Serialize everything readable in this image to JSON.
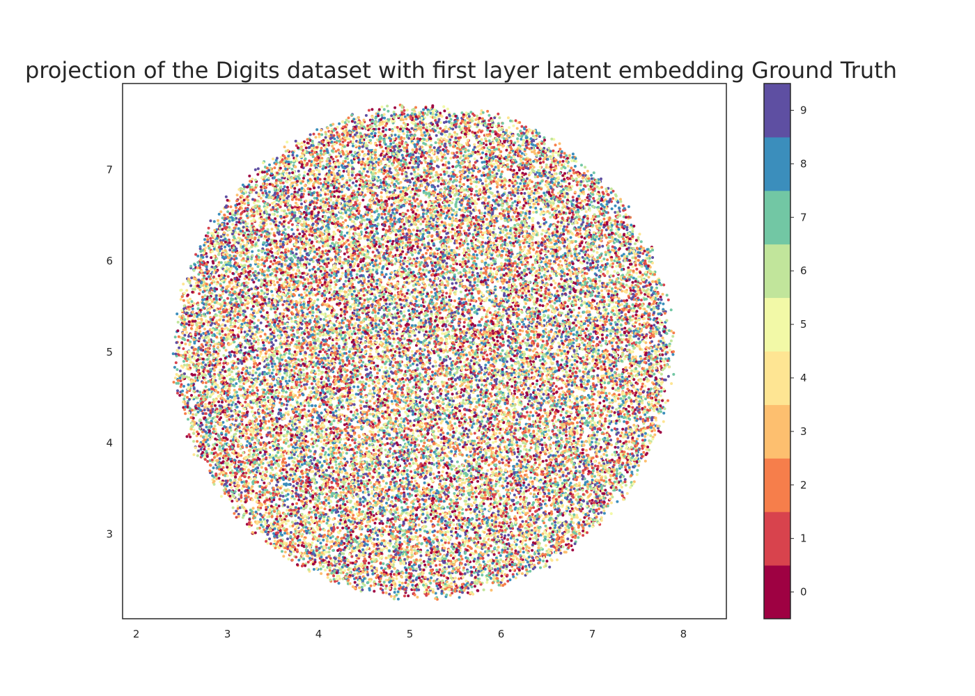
{
  "chart_data": {
    "type": "scatter",
    "title": "projection of the Digits dataset with first layer latent embedding Ground Truth",
    "xlabel": "",
    "ylabel": "",
    "xlim": [
      1.85,
      8.47
    ],
    "ylim": [
      2.07,
      7.95
    ],
    "x_ticks": [
      "2",
      "3",
      "4",
      "5",
      "6",
      "7",
      "8"
    ],
    "y_ticks": [
      "3",
      "4",
      "5",
      "6",
      "7"
    ],
    "grid": false,
    "cloud": {
      "center": [
        5.1,
        5.1
      ],
      "x_extent": [
        2.45,
        7.85
      ],
      "y_extent": [
        2.33,
        7.68
      ],
      "num_points": 28000,
      "note_class_mixing": "all classes uniformly intermixed"
    },
    "colorbar": {
      "labels": [
        "0",
        "1",
        "2",
        "3",
        "4",
        "5",
        "6",
        "7",
        "8",
        "9"
      ],
      "colors": [
        "#9e0142",
        "#d8434d",
        "#f67e4b",
        "#fdbf6f",
        "#fee593",
        "#f2f9a7",
        "#c1e59b",
        "#72c7a4",
        "#3b8ebc",
        "#5e4fa2"
      ],
      "vmin": -0.5,
      "vmax": 9.5
    }
  }
}
